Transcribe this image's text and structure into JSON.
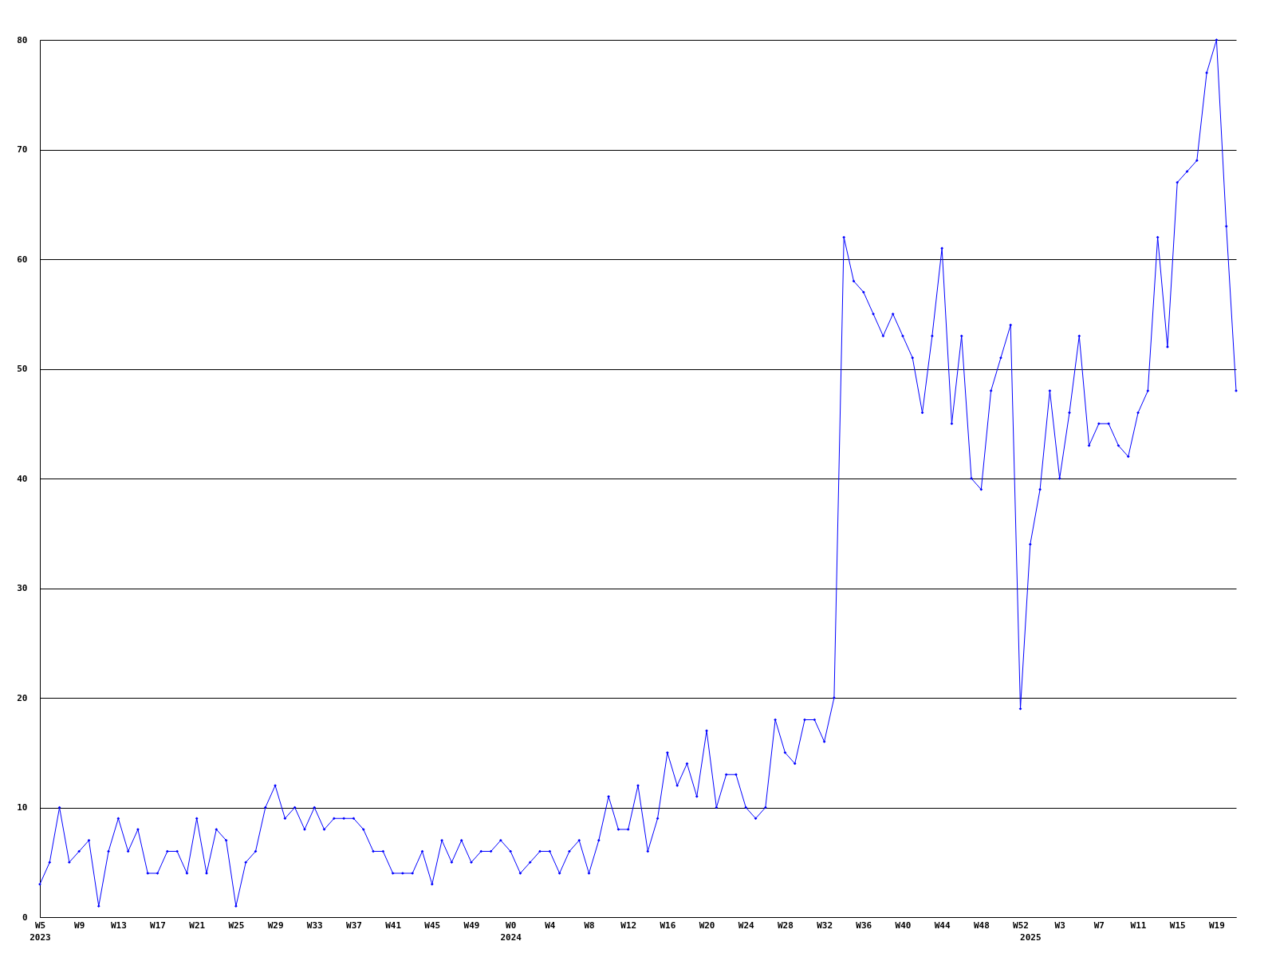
{
  "chart_data": {
    "type": "line",
    "color": "#0000ff",
    "marker": "diamond",
    "grid": "y",
    "ylim": [
      0,
      80
    ],
    "yticks": [
      0,
      10,
      20,
      30,
      40,
      50,
      60,
      70,
      80
    ],
    "categories": [
      "W5\n2023",
      null,
      null,
      null,
      "W9",
      null,
      null,
      null,
      "W13",
      null,
      null,
      null,
      "W17",
      null,
      null,
      null,
      "W21",
      null,
      null,
      null,
      "W25",
      null,
      null,
      null,
      "W29",
      null,
      null,
      null,
      "W33",
      null,
      null,
      null,
      "W37",
      null,
      null,
      null,
      "W41",
      null,
      null,
      null,
      "W45",
      null,
      null,
      null,
      "W49",
      null,
      null,
      null,
      "W0\n2024",
      null,
      null,
      null,
      "W4",
      null,
      null,
      null,
      "W8",
      null,
      null,
      null,
      "W12",
      null,
      null,
      null,
      "W16",
      null,
      null,
      null,
      "W20",
      null,
      null,
      null,
      "W24",
      null,
      null,
      null,
      "W28",
      null,
      null,
      null,
      "W32",
      null,
      null,
      null,
      "W36",
      null,
      null,
      null,
      "W40",
      null,
      null,
      null,
      "W44",
      null,
      null,
      null,
      "W48",
      null,
      null,
      null,
      "W52",
      "\n2025",
      null,
      null,
      "W3",
      null,
      null,
      null,
      "W7",
      null,
      null,
      null,
      "W11",
      null,
      null,
      null,
      "W15",
      null,
      null,
      null,
      "W19",
      null,
      null
    ],
    "values": [
      3,
      5,
      10,
      5,
      6,
      7,
      1,
      6,
      9,
      6,
      8,
      4,
      4,
      6,
      6,
      4,
      9,
      4,
      8,
      7,
      1,
      5,
      6,
      10,
      12,
      9,
      10,
      8,
      10,
      8,
      9,
      9,
      9,
      8,
      6,
      6,
      4,
      4,
      4,
      6,
      3,
      7,
      5,
      7,
      5,
      6,
      6,
      7,
      6,
      4,
      5,
      6,
      6,
      4,
      6,
      7,
      4,
      7,
      11,
      8,
      8,
      12,
      6,
      9,
      15,
      12,
      14,
      11,
      17,
      10,
      13,
      13,
      10,
      9,
      10,
      18,
      15,
      14,
      18,
      18,
      16,
      20,
      62,
      58,
      57,
      55,
      53,
      55,
      53,
      51,
      46,
      53,
      61,
      45,
      53,
      40,
      39,
      48,
      51,
      54,
      19,
      34,
      39,
      48,
      40,
      46,
      53,
      43,
      45,
      45,
      43,
      42,
      46,
      48,
      62,
      52,
      67,
      68,
      69,
      77,
      80,
      63,
      48
    ]
  }
}
